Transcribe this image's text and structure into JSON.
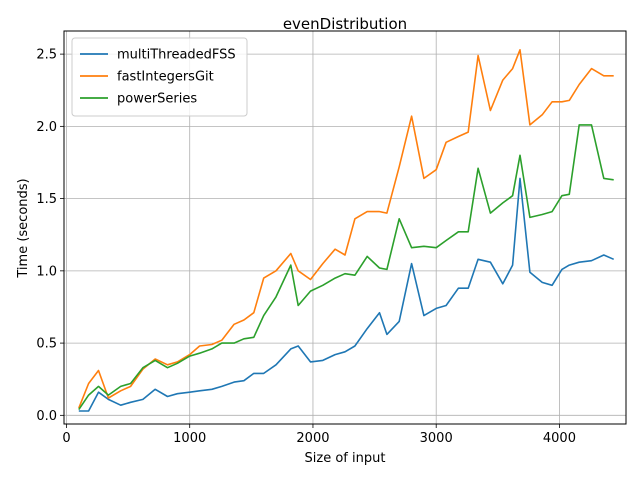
{
  "chart_data": {
    "type": "line",
    "title": "evenDistribution",
    "xlabel": "Size of input",
    "ylabel": "Time (seconds)",
    "xlim": [
      -20,
      4540
    ],
    "ylim": [
      -0.06,
      2.66
    ],
    "xticks": [
      0,
      1000,
      2000,
      3000,
      4000
    ],
    "xtick_labels": [
      "0",
      "1000",
      "2000",
      "3000",
      "4000"
    ],
    "yticks": [
      0.0,
      0.5,
      1.0,
      1.5,
      2.0,
      2.5
    ],
    "ytick_labels": [
      "0.0",
      "0.5",
      "1.0",
      "1.5",
      "2.0",
      "2.5"
    ],
    "grid": true,
    "legend_position": "top-left",
    "x": [
      100,
      180,
      260,
      340,
      440,
      520,
      620,
      720,
      820,
      900,
      1000,
      1080,
      1180,
      1260,
      1360,
      1440,
      1520,
      1600,
      1700,
      1820,
      1880,
      1980,
      2080,
      2180,
      2260,
      2340,
      2440,
      2540,
      2600,
      2700,
      2800,
      2900,
      3000,
      3080,
      3180,
      3260,
      3340,
      3440,
      3540,
      3620,
      3680,
      3760,
      3860,
      3940,
      4020,
      4080,
      4160,
      4260,
      4360,
      4440
    ],
    "series": [
      {
        "name": "multiThreadedFSS",
        "color": "#1f77b4",
        "values": [
          0.03,
          0.03,
          0.16,
          0.11,
          0.07,
          0.09,
          0.11,
          0.18,
          0.13,
          0.15,
          0.16,
          0.17,
          0.18,
          0.2,
          0.23,
          0.24,
          0.29,
          0.29,
          0.35,
          0.46,
          0.48,
          0.37,
          0.38,
          0.42,
          0.44,
          0.48,
          0.6,
          0.71,
          0.56,
          0.65,
          1.05,
          0.69,
          0.74,
          0.76,
          0.88,
          0.88,
          1.08,
          1.06,
          0.91,
          1.04,
          1.64,
          0.99,
          0.92,
          0.9,
          1.01,
          1.04,
          1.06,
          1.07,
          1.11,
          1.08
        ]
      },
      {
        "name": "fastIntegersGit",
        "color": "#ff7f0e",
        "values": [
          0.05,
          0.22,
          0.31,
          0.12,
          0.17,
          0.2,
          0.32,
          0.39,
          0.35,
          0.37,
          0.42,
          0.48,
          0.49,
          0.52,
          0.63,
          0.66,
          0.71,
          0.95,
          1.0,
          1.12,
          1.0,
          0.94,
          1.05,
          1.15,
          1.11,
          1.36,
          1.41,
          1.41,
          1.4,
          1.72,
          2.07,
          1.64,
          1.7,
          1.89,
          1.93,
          1.96,
          2.49,
          2.11,
          2.32,
          2.4,
          2.53,
          2.01,
          2.08,
          2.17,
          2.17,
          2.18,
          2.29,
          2.4,
          2.35,
          2.35
        ]
      },
      {
        "name": "powerSeries",
        "color": "#2ca02c",
        "values": [
          0.04,
          0.14,
          0.2,
          0.14,
          0.2,
          0.22,
          0.33,
          0.38,
          0.33,
          0.36,
          0.41,
          0.43,
          0.46,
          0.5,
          0.5,
          0.53,
          0.54,
          0.69,
          0.82,
          1.04,
          0.76,
          0.86,
          0.9,
          0.95,
          0.98,
          0.97,
          1.1,
          1.02,
          1.01,
          1.36,
          1.16,
          1.17,
          1.16,
          1.21,
          1.27,
          1.27,
          1.71,
          1.4,
          1.47,
          1.52,
          1.8,
          1.37,
          1.39,
          1.41,
          1.52,
          1.53,
          2.01,
          2.01,
          1.64,
          1.63
        ]
      }
    ]
  }
}
